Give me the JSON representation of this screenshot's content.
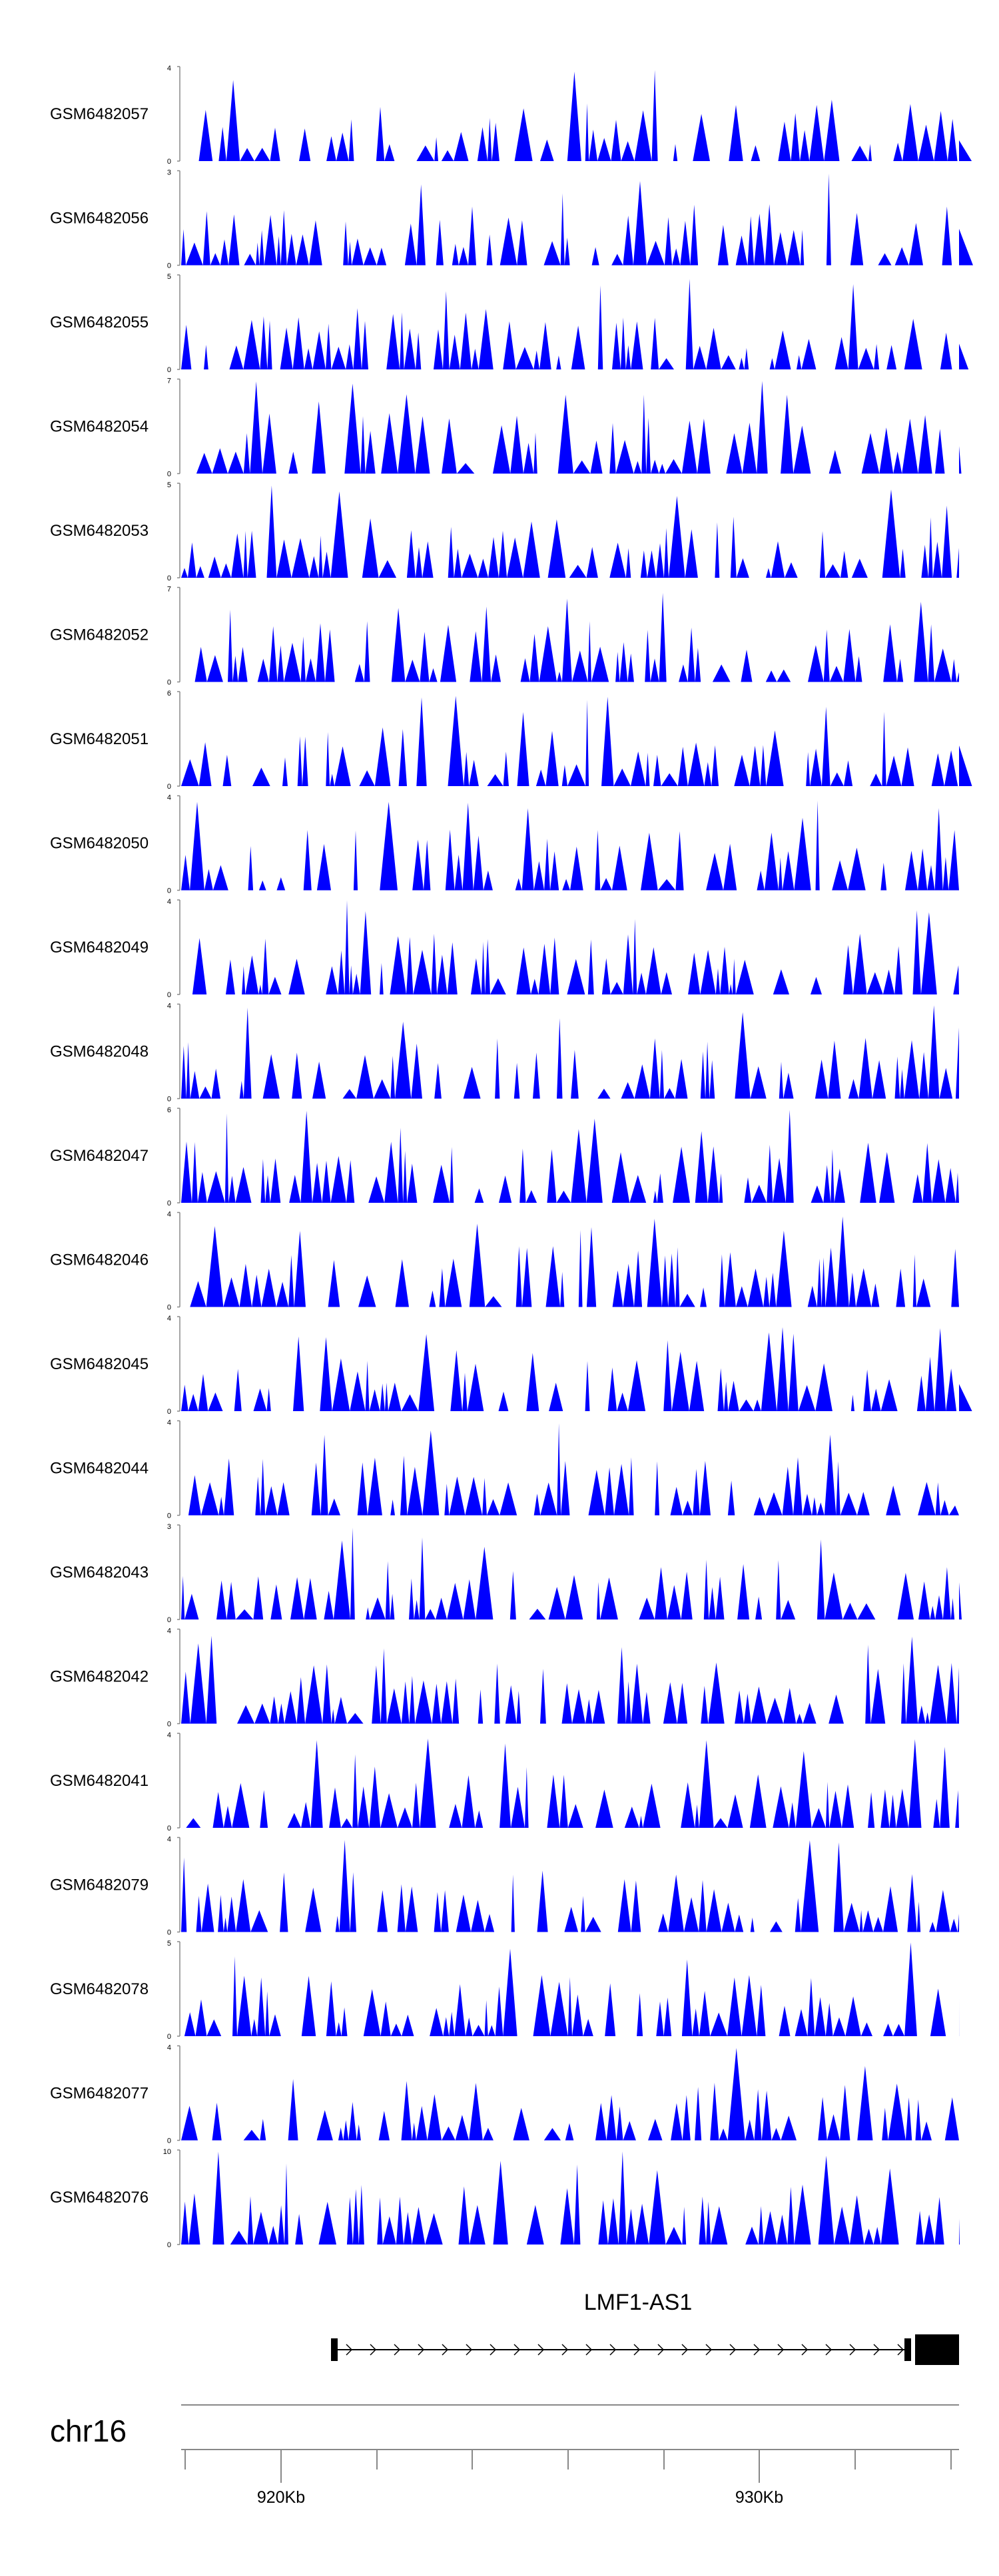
{
  "chart_data": {
    "type": "area",
    "title": "",
    "chromosome": "chr16",
    "x_axis": {
      "tick_labels": [
        "920Kb",
        "930Kb"
      ],
      "label_positions_kb": [
        920,
        930
      ],
      "range_kb": [
        918.0,
        934.2
      ]
    },
    "tracks": [
      {
        "name": "GSM6482057",
        "ymax": 4,
        "ylim": [
          0,
          4
        ]
      },
      {
        "name": "GSM6482056",
        "ymax": 3,
        "ylim": [
          0,
          3
        ]
      },
      {
        "name": "GSM6482055",
        "ymax": 5,
        "ylim": [
          0,
          5
        ]
      },
      {
        "name": "GSM6482054",
        "ymax": 7,
        "ylim": [
          0,
          7
        ]
      },
      {
        "name": "GSM6482053",
        "ymax": 5,
        "ylim": [
          0,
          5
        ]
      },
      {
        "name": "GSM6482052",
        "ymax": 7,
        "ylim": [
          0,
          7
        ]
      },
      {
        "name": "GSM6482051",
        "ymax": 6,
        "ylim": [
          0,
          6
        ]
      },
      {
        "name": "GSM6482050",
        "ymax": 4,
        "ylim": [
          0,
          4
        ]
      },
      {
        "name": "GSM6482049",
        "ymax": 4,
        "ylim": [
          0,
          4
        ]
      },
      {
        "name": "GSM6482048",
        "ymax": 4,
        "ylim": [
          0,
          4
        ]
      },
      {
        "name": "GSM6482047",
        "ymax": 6,
        "ylim": [
          0,
          6
        ]
      },
      {
        "name": "GSM6482046",
        "ymax": 4,
        "ylim": [
          0,
          4
        ]
      },
      {
        "name": "GSM6482045",
        "ymax": 4,
        "ylim": [
          0,
          4
        ]
      },
      {
        "name": "GSM6482044",
        "ymax": 4,
        "ylim": [
          0,
          4
        ]
      },
      {
        "name": "GSM6482043",
        "ymax": 3,
        "ylim": [
          0,
          3
        ]
      },
      {
        "name": "GSM6482042",
        "ymax": 4,
        "ylim": [
          0,
          4
        ]
      },
      {
        "name": "GSM6482041",
        "ymax": 4,
        "ylim": [
          0,
          4
        ]
      },
      {
        "name": "GSM6482079",
        "ymax": 4,
        "ylim": [
          0,
          4
        ]
      },
      {
        "name": "GSM6482078",
        "ymax": 5,
        "ylim": [
          0,
          5
        ]
      },
      {
        "name": "GSM6482077",
        "ymax": 4,
        "ylim": [
          0,
          4
        ]
      },
      {
        "name": "GSM6482076",
        "ymax": 10,
        "ylim": [
          0,
          10
        ]
      }
    ],
    "gene": {
      "name": "LMF1-AS1",
      "strand": "+"
    },
    "colors": {
      "signal": "#0000ff",
      "gene": "#000000",
      "axis": "#888888"
    }
  }
}
